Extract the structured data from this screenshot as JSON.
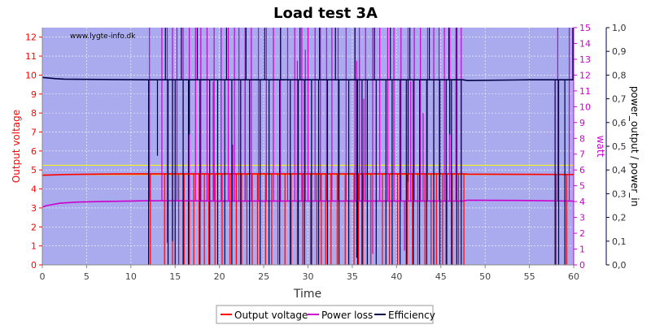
{
  "chart_data": {
    "type": "line",
    "title": "Load test 3A",
    "watermark": "www.lygte-info.dk",
    "xlabel": "Time",
    "xlim": [
      0,
      60
    ],
    "xticks": [
      0,
      5,
      10,
      15,
      20,
      25,
      30,
      35,
      40,
      45,
      50,
      55,
      60
    ],
    "axes": {
      "left": {
        "label": "Output voltage",
        "lim": [
          0,
          12.5
        ],
        "ticks": [
          0,
          1,
          2,
          3,
          4,
          5,
          6,
          7,
          8,
          9,
          10,
          11,
          12
        ],
        "color": "#ff0000"
      },
      "right1": {
        "label": "watt",
        "lim": [
          0,
          15
        ],
        "ticks": [
          0,
          1,
          2,
          3,
          4,
          5,
          6,
          7,
          8,
          9,
          10,
          11,
          12,
          13,
          14,
          15
        ],
        "color": "#cc00cc"
      },
      "right2": {
        "label": "power_output / power_in",
        "lim": [
          0,
          1.0
        ],
        "ticks": [
          "0,0",
          "0,1",
          "0,2",
          "0,3",
          "0,4",
          "0,5",
          "0,6",
          "0,7",
          "0,8",
          "0,9",
          "1,0"
        ],
        "tick_values": [
          0,
          0.1,
          0.2,
          0.3,
          0.4,
          0.5,
          0.6,
          0.7,
          0.8,
          0.9,
          1.0
        ],
        "color": "#000044"
      }
    },
    "reference_lines": [
      {
        "axis": "left",
        "value": 5.25,
        "color": "#ffff00"
      },
      {
        "axis": "left",
        "value": 4.75,
        "color": "#ffa500"
      }
    ],
    "series": [
      {
        "name": "Output voltage",
        "axis": "left",
        "color": "#ff0000",
        "baseline": [
          [
            0,
            4.72
          ],
          [
            2.5,
            4.76
          ],
          [
            8,
            4.79
          ],
          [
            12,
            4.8
          ],
          [
            47.5,
            4.8
          ],
          [
            48,
            4.78
          ],
          [
            55,
            4.77
          ],
          [
            60,
            4.76
          ]
        ],
        "dropouts": [
          12.2,
          13.8,
          14.7,
          15.4,
          16.0,
          16.6,
          17.1,
          17.7,
          18.3,
          18.8,
          19.5,
          20.3,
          21.2,
          21.9,
          22.5,
          23.1,
          23.7,
          24.3,
          25.2,
          25.9,
          26.6,
          27.4,
          28.1,
          28.8,
          29.4,
          30.3,
          31.0,
          31.5,
          32.0,
          32.6,
          33.3,
          34.2,
          35.2,
          35.7,
          36.2,
          37.1,
          38.4,
          39.2,
          40.1,
          41.2,
          41.8,
          42.4,
          43.2,
          43.9,
          44.5,
          45.2,
          45.7,
          46.3,
          47.0,
          47.6,
          58.0,
          59.2
        ]
      },
      {
        "name": "Power loss",
        "axis": "right1",
        "color": "#cc00cc",
        "baseline": [
          [
            0,
            3.65
          ],
          [
            0.5,
            3.75
          ],
          [
            2,
            3.9
          ],
          [
            4,
            3.97
          ],
          [
            7,
            4.01
          ],
          [
            10,
            4.04
          ],
          [
            12,
            4.06
          ],
          [
            20,
            4.04
          ],
          [
            35,
            4.04
          ],
          [
            47.5,
            4.04
          ],
          [
            48,
            4.09
          ],
          [
            55,
            4.07
          ],
          [
            60,
            4.03
          ]
        ],
        "spikes": [
          12.1,
          13.5,
          14.1,
          14.7,
          15.2,
          15.9,
          16.6,
          17.3,
          17.9,
          18.6,
          19.4,
          20.2,
          21.0,
          21.7,
          22.2,
          22.9,
          23.6,
          24.4,
          25.3,
          26.1,
          26.9,
          27.7,
          28.5,
          29.3,
          30.0,
          30.8,
          31.4,
          32.1,
          32.7,
          33.4,
          34.3,
          35.3,
          35.8,
          36.5,
          37.3,
          38.1,
          39.0,
          39.7,
          40.5,
          41.3,
          42.0,
          42.7,
          43.5,
          44.2,
          44.8,
          45.4,
          46.0,
          46.7,
          47.3,
          58.2,
          59.5
        ],
        "partial_spikes": [
          [
            19.3,
            11.6
          ],
          [
            21.5,
            7.6
          ],
          [
            22.9,
            11.9
          ],
          [
            28.8,
            12.9
          ],
          [
            29.7,
            13.6
          ],
          [
            35.5,
            12.9
          ],
          [
            35.8,
            13.0
          ],
          [
            36.3,
            10.5
          ],
          [
            41.6,
            11.6
          ],
          [
            43.0,
            9.6
          ]
        ],
        "dips": [
          [
            14.1,
            1.4
          ],
          [
            37.3,
            0.7
          ],
          [
            40.9,
            0.9
          ],
          [
            44.9,
            0.8
          ]
        ]
      },
      {
        "name": "Efficiency",
        "axis": "right2",
        "color": "#000044",
        "baseline": [
          [
            0,
            0.79
          ],
          [
            1.5,
            0.785
          ],
          [
            2.5,
            0.783
          ],
          [
            5,
            0.782
          ],
          [
            8,
            0.781
          ],
          [
            12,
            0.78
          ],
          [
            47.5,
            0.78
          ],
          [
            48,
            0.777
          ],
          [
            55,
            0.78
          ],
          [
            60,
            0.78
          ]
        ],
        "dropouts": [
          12.0,
          14.2,
          15.0,
          15.9,
          16.5,
          17.8,
          18.9,
          19.8,
          20.6,
          21.4,
          22.4,
          23.4,
          24.6,
          25.6,
          26.8,
          28.0,
          28.9,
          29.6,
          30.4,
          31.2,
          32.2,
          33.5,
          34.6,
          35.6,
          36.1,
          36.7,
          37.7,
          38.8,
          39.5,
          40.4,
          41.1,
          41.9,
          42.6,
          43.4,
          44.2,
          44.9,
          45.6,
          46.2,
          46.8,
          47.3,
          57.9,
          59.0
        ],
        "spikes_up": [
          13.9,
          15.7,
          17.5,
          20.8,
          23.0,
          25.1,
          26.9,
          29.1,
          31.3,
          33.1,
          35.3,
          37.5,
          39.3,
          41.5,
          43.7,
          45.9,
          46.8,
          59.9
        ],
        "dips": [
          [
            13.0,
            0.46
          ],
          [
            14.7,
            0.1
          ],
          [
            16.6,
            0.55
          ],
          [
            35.5,
            0.03
          ],
          [
            41.3,
            0.35
          ],
          [
            46.0,
            0.55
          ],
          [
            58.3,
            0.0
          ]
        ]
      }
    ],
    "legend": {
      "placement": "bottom-center",
      "entries": [
        "Output voltage",
        "Power loss",
        "Efficiency"
      ]
    },
    "grid": true
  }
}
